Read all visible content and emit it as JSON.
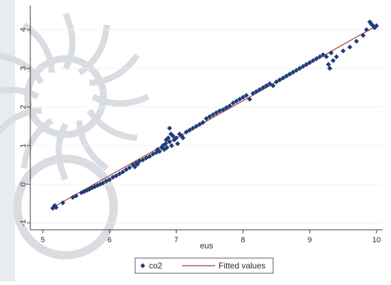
{
  "chart_data": {
    "type": "scatter",
    "xlabel": "eus",
    "ylabel": "",
    "xlim": [
      5,
      10
    ],
    "ylim": [
      -1,
      4.2
    ],
    "x_ticks": [
      5,
      6,
      7,
      8,
      9,
      10
    ],
    "y_ticks": [
      -1,
      0,
      1,
      2,
      3,
      4
    ],
    "grid": "horizontal",
    "legend_position": "bottom",
    "colors": {
      "marker": "#1f3d7a",
      "fit_line": "#a83232",
      "watermark": "#d9dde2",
      "axis": "#333333"
    },
    "fit": {
      "name": "Fitted values",
      "x": [
        5.15,
        10.0
      ],
      "y": [
        -0.6,
        4.1
      ]
    },
    "series": [
      {
        "name": "co2",
        "marker": "diamond",
        "points": [
          [
            5.15,
            -0.62
          ],
          [
            5.17,
            -0.58
          ],
          [
            5.18,
            -0.55
          ],
          [
            5.2,
            -0.6
          ],
          [
            5.3,
            -0.48
          ],
          [
            5.45,
            -0.34
          ],
          [
            5.5,
            -0.3
          ],
          [
            5.58,
            -0.22
          ],
          [
            5.62,
            -0.19
          ],
          [
            5.66,
            -0.16
          ],
          [
            5.7,
            -0.13
          ],
          [
            5.74,
            -0.09
          ],
          [
            5.78,
            -0.06
          ],
          [
            5.82,
            -0.03
          ],
          [
            5.86,
            0.0
          ],
          [
            5.9,
            0.03
          ],
          [
            5.95,
            0.08
          ],
          [
            6.0,
            0.12
          ],
          [
            6.05,
            0.18
          ],
          [
            6.1,
            0.22
          ],
          [
            6.15,
            0.27
          ],
          [
            6.2,
            0.32
          ],
          [
            6.25,
            0.38
          ],
          [
            6.3,
            0.43
          ],
          [
            6.35,
            0.5
          ],
          [
            6.38,
            0.45
          ],
          [
            6.4,
            0.55
          ],
          [
            6.42,
            0.52
          ],
          [
            6.45,
            0.6
          ],
          [
            6.5,
            0.63
          ],
          [
            6.55,
            0.68
          ],
          [
            6.6,
            0.72
          ],
          [
            6.65,
            0.78
          ],
          [
            6.7,
            0.82
          ],
          [
            6.72,
            0.9
          ],
          [
            6.75,
            0.85
          ],
          [
            6.78,
            0.95
          ],
          [
            6.8,
            1.0
          ],
          [
            6.82,
            0.9
          ],
          [
            6.84,
            1.05
          ],
          [
            6.85,
            1.15
          ],
          [
            6.86,
            0.95
          ],
          [
            6.88,
            1.2
          ],
          [
            6.9,
            1.1
          ],
          [
            6.9,
            1.45
          ],
          [
            6.92,
            1.3
          ],
          [
            6.93,
            1.0
          ],
          [
            6.95,
            1.25
          ],
          [
            6.97,
            1.15
          ],
          [
            7.0,
            1.2
          ],
          [
            7.02,
            1.05
          ],
          [
            7.05,
            1.3
          ],
          [
            7.08,
            1.25
          ],
          [
            7.1,
            1.2
          ],
          [
            7.15,
            1.35
          ],
          [
            7.2,
            1.4
          ],
          [
            7.25,
            1.45
          ],
          [
            7.3,
            1.5
          ],
          [
            7.35,
            1.55
          ],
          [
            7.4,
            1.6
          ],
          [
            7.45,
            1.7
          ],
          [
            7.5,
            1.75
          ],
          [
            7.55,
            1.8
          ],
          [
            7.6,
            1.85
          ],
          [
            7.65,
            1.9
          ],
          [
            7.7,
            1.93
          ],
          [
            7.75,
            1.98
          ],
          [
            7.8,
            2.03
          ],
          [
            7.85,
            2.1
          ],
          [
            7.9,
            2.15
          ],
          [
            7.95,
            2.2
          ],
          [
            8.0,
            2.25
          ],
          [
            8.05,
            2.3
          ],
          [
            8.1,
            2.2
          ],
          [
            8.15,
            2.35
          ],
          [
            8.2,
            2.4
          ],
          [
            8.25,
            2.45
          ],
          [
            8.3,
            2.5
          ],
          [
            8.35,
            2.55
          ],
          [
            8.4,
            2.6
          ],
          [
            8.45,
            2.55
          ],
          [
            8.5,
            2.65
          ],
          [
            8.55,
            2.7
          ],
          [
            8.6,
            2.75
          ],
          [
            8.65,
            2.8
          ],
          [
            8.7,
            2.85
          ],
          [
            8.75,
            2.9
          ],
          [
            8.8,
            2.95
          ],
          [
            8.85,
            3.0
          ],
          [
            8.9,
            3.05
          ],
          [
            8.95,
            3.1
          ],
          [
            9.0,
            3.15
          ],
          [
            9.05,
            3.2
          ],
          [
            9.1,
            3.25
          ],
          [
            9.15,
            3.3
          ],
          [
            9.2,
            3.35
          ],
          [
            9.25,
            3.3
          ],
          [
            9.28,
            3.1
          ],
          [
            9.3,
            3.0
          ],
          [
            9.32,
            3.4
          ],
          [
            9.35,
            3.2
          ],
          [
            9.4,
            3.3
          ],
          [
            9.5,
            3.45
          ],
          [
            9.6,
            3.55
          ],
          [
            9.7,
            3.7
          ],
          [
            9.8,
            3.85
          ],
          [
            9.85,
            4.0
          ],
          [
            9.9,
            4.2
          ],
          [
            9.92,
            4.15
          ],
          [
            9.95,
            4.1
          ],
          [
            9.97,
            4.05
          ],
          [
            10.0,
            4.1
          ]
        ]
      }
    ]
  }
}
